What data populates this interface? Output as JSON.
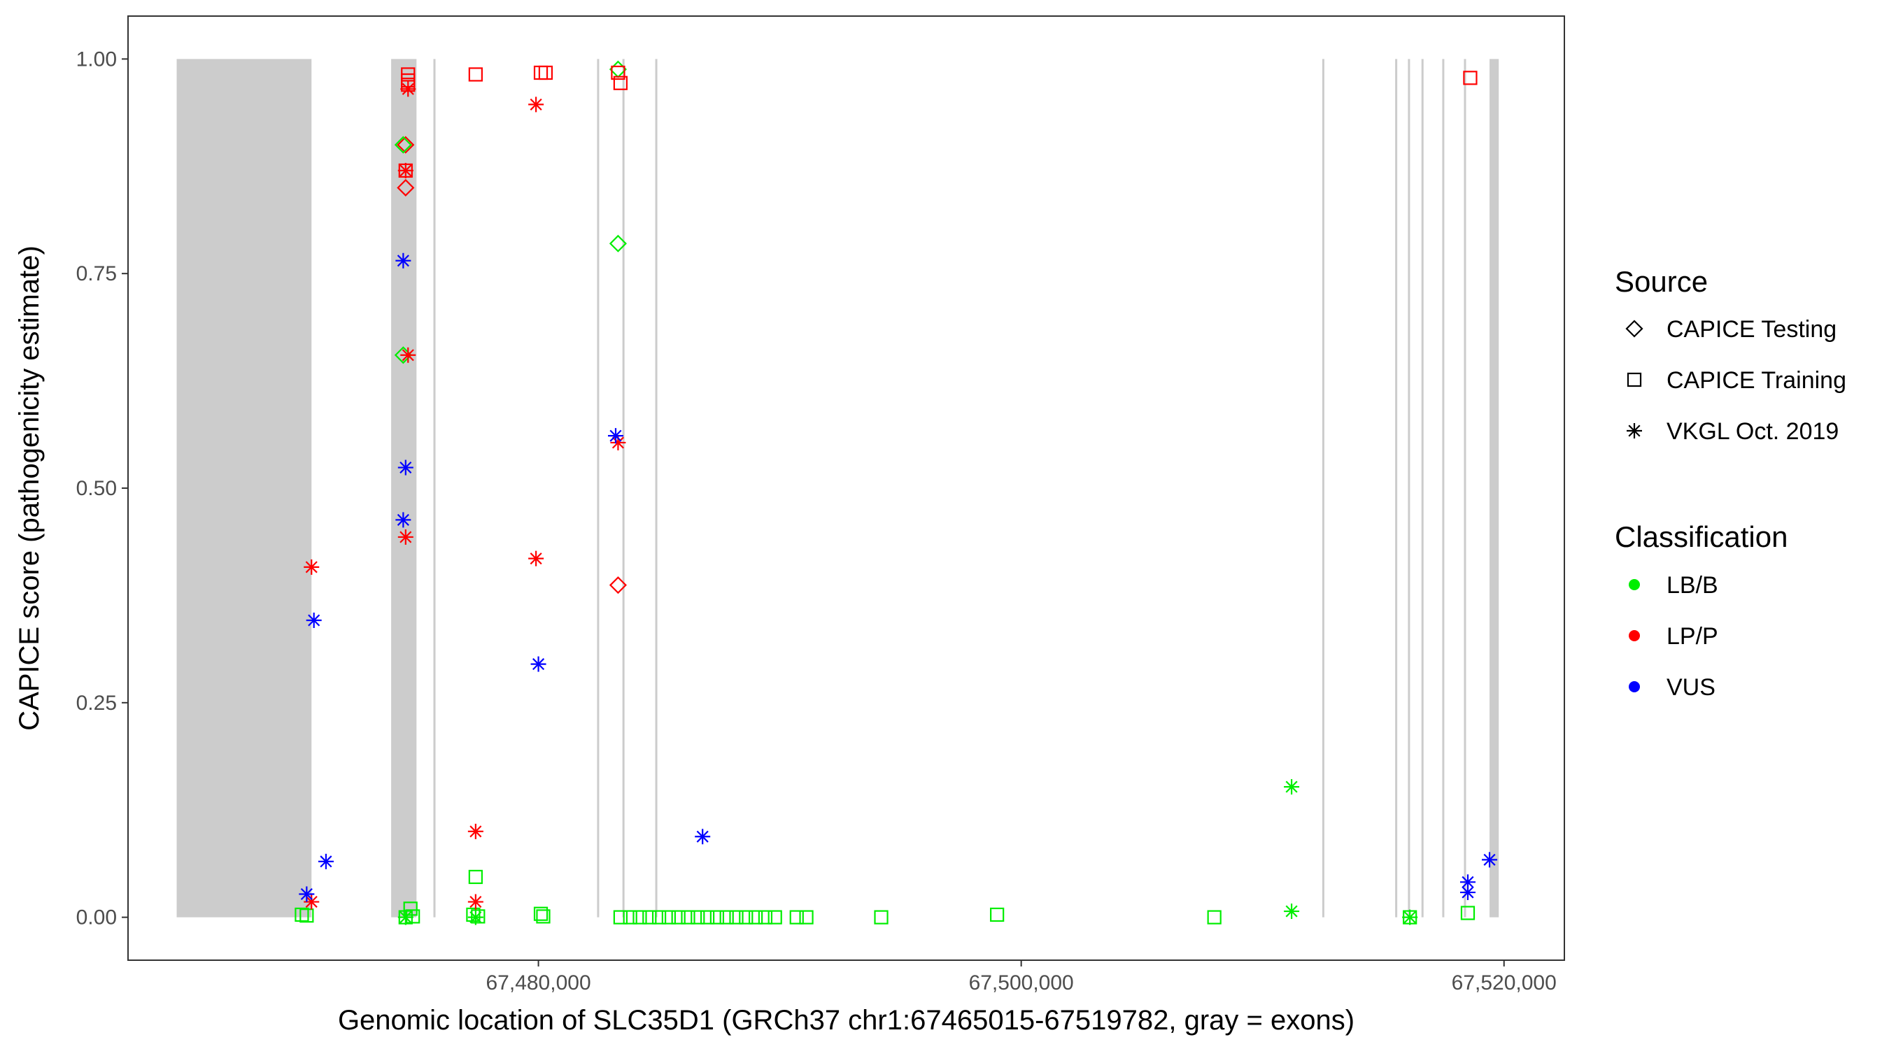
{
  "chart_data": {
    "type": "scatter",
    "title": "",
    "xlabel": "Genomic location of SLC35D1 (GRCh37 chr1:67465015-67519782, gray = exons)",
    "ylabel": "CAPICE score (pathogenicity estimate)",
    "xlim": [
      67463000,
      67522500
    ],
    "ylim": [
      -0.05,
      1.05
    ],
    "x_ticks": [
      {
        "value": 67480000,
        "label": "67,480,000"
      },
      {
        "value": 67500000,
        "label": "67,500,000"
      },
      {
        "value": 67520000,
        "label": "67,520,000"
      }
    ],
    "y_ticks": [
      {
        "value": 0.0,
        "label": "0.00"
      },
      {
        "value": 0.25,
        "label": "0.25"
      },
      {
        "value": 0.5,
        "label": "0.50"
      },
      {
        "value": 0.75,
        "label": "0.75"
      },
      {
        "value": 1.0,
        "label": "1.00"
      }
    ],
    "grid": false,
    "legend_position": "right",
    "exons": [
      [
        67465015,
        67470600
      ],
      [
        67473900,
        67474950
      ],
      [
        67475650,
        67475720
      ],
      [
        67482430,
        67482500
      ],
      [
        67483480,
        67483550
      ],
      [
        67484840,
        67484910
      ],
      [
        67512470,
        67512540
      ],
      [
        67515490,
        67515560
      ],
      [
        67516020,
        67516090
      ],
      [
        67516580,
        67516640
      ],
      [
        67517440,
        67517510
      ],
      [
        67518340,
        67518410
      ],
      [
        67519400,
        67519782
      ]
    ],
    "source_legend": {
      "title": "Source",
      "items": [
        {
          "key": "testing",
          "label": "CAPICE Testing",
          "shape": "diamond"
        },
        {
          "key": "training",
          "label": "CAPICE Training",
          "shape": "square"
        },
        {
          "key": "vkgl",
          "label": "VKGL Oct. 2019",
          "shape": "asterisk"
        }
      ]
    },
    "class_legend": {
      "title": "Classification",
      "items": [
        {
          "key": "LB/B",
          "label": "LB/B",
          "color": "#00ee00"
        },
        {
          "key": "LP/P",
          "label": "LP/P",
          "color": "#ff0000"
        },
        {
          "key": "VUS",
          "label": "VUS",
          "color": "#0000ff"
        }
      ]
    },
    "points": [
      {
        "x": 67474500,
        "y": 0.9,
        "source": "testing",
        "class": "LP/P"
      },
      {
        "x": 67474500,
        "y": 0.85,
        "source": "testing",
        "class": "LP/P"
      },
      {
        "x": 67474400,
        "y": 0.9,
        "source": "testing",
        "class": "LB/B"
      },
      {
        "x": 67474400,
        "y": 0.655,
        "source": "testing",
        "class": "LB/B"
      },
      {
        "x": 67483300,
        "y": 0.988,
        "source": "testing",
        "class": "LB/B"
      },
      {
        "x": 67483300,
        "y": 0.785,
        "source": "testing",
        "class": "LB/B"
      },
      {
        "x": 67483300,
        "y": 0.387,
        "source": "testing",
        "class": "LP/P"
      },
      {
        "x": 67474600,
        "y": 0.982,
        "source": "training",
        "class": "LP/P"
      },
      {
        "x": 67474600,
        "y": 0.975,
        "source": "training",
        "class": "LP/P"
      },
      {
        "x": 67474600,
        "y": 0.97,
        "source": "training",
        "class": "LP/P"
      },
      {
        "x": 67474500,
        "y": 0.87,
        "source": "training",
        "class": "LP/P"
      },
      {
        "x": 67477400,
        "y": 0.982,
        "source": "training",
        "class": "LP/P"
      },
      {
        "x": 67480100,
        "y": 0.984,
        "source": "training",
        "class": "LP/P"
      },
      {
        "x": 67480300,
        "y": 0.984,
        "source": "training",
        "class": "LP/P"
      },
      {
        "x": 67483300,
        "y": 0.984,
        "source": "training",
        "class": "LP/P"
      },
      {
        "x": 67483400,
        "y": 0.972,
        "source": "training",
        "class": "LP/P"
      },
      {
        "x": 67518600,
        "y": 0.978,
        "source": "training",
        "class": "LP/P"
      },
      {
        "x": 67470200,
        "y": 0.003,
        "source": "training",
        "class": "LB/B"
      },
      {
        "x": 67470400,
        "y": 0.002,
        "source": "training",
        "class": "LB/B"
      },
      {
        "x": 67474500,
        "y": 0.0,
        "source": "training",
        "class": "LB/B"
      },
      {
        "x": 67474700,
        "y": 0.01,
        "source": "training",
        "class": "LB/B"
      },
      {
        "x": 67474800,
        "y": 0.001,
        "source": "training",
        "class": "LB/B"
      },
      {
        "x": 67477400,
        "y": 0.047,
        "source": "training",
        "class": "LB/B"
      },
      {
        "x": 67477300,
        "y": 0.003,
        "source": "training",
        "class": "LB/B"
      },
      {
        "x": 67477500,
        "y": 0.001,
        "source": "training",
        "class": "LB/B"
      },
      {
        "x": 67480100,
        "y": 0.004,
        "source": "training",
        "class": "LB/B"
      },
      {
        "x": 67480200,
        "y": 0.001,
        "source": "training",
        "class": "LB/B"
      },
      {
        "x": 67483400,
        "y": 0.0,
        "source": "training",
        "class": "LB/B"
      },
      {
        "x": 67483800,
        "y": 0.0,
        "source": "training",
        "class": "LB/B"
      },
      {
        "x": 67484200,
        "y": 0.0,
        "source": "training",
        "class": "LB/B"
      },
      {
        "x": 67484600,
        "y": 0.0,
        "source": "training",
        "class": "LB/B"
      },
      {
        "x": 67485000,
        "y": 0.0,
        "source": "training",
        "class": "LB/B"
      },
      {
        "x": 67485400,
        "y": 0.0,
        "source": "training",
        "class": "LB/B"
      },
      {
        "x": 67485800,
        "y": 0.0,
        "source": "training",
        "class": "LB/B"
      },
      {
        "x": 67486200,
        "y": 0.0,
        "source": "training",
        "class": "LB/B"
      },
      {
        "x": 67486600,
        "y": 0.0,
        "source": "training",
        "class": "LB/B"
      },
      {
        "x": 67487000,
        "y": 0.0,
        "source": "training",
        "class": "LB/B"
      },
      {
        "x": 67487400,
        "y": 0.0,
        "source": "training",
        "class": "LB/B"
      },
      {
        "x": 67487800,
        "y": 0.0,
        "source": "training",
        "class": "LB/B"
      },
      {
        "x": 67488200,
        "y": 0.0,
        "source": "training",
        "class": "LB/B"
      },
      {
        "x": 67488600,
        "y": 0.0,
        "source": "training",
        "class": "LB/B"
      },
      {
        "x": 67489000,
        "y": 0.0,
        "source": "training",
        "class": "LB/B"
      },
      {
        "x": 67489400,
        "y": 0.0,
        "source": "training",
        "class": "LB/B"
      },
      {
        "x": 67489800,
        "y": 0.0,
        "source": "training",
        "class": "LB/B"
      },
      {
        "x": 67490700,
        "y": 0.0,
        "source": "training",
        "class": "LB/B"
      },
      {
        "x": 67491100,
        "y": 0.0,
        "source": "training",
        "class": "LB/B"
      },
      {
        "x": 67494200,
        "y": 0.0,
        "source": "training",
        "class": "LB/B"
      },
      {
        "x": 67499000,
        "y": 0.003,
        "source": "training",
        "class": "LB/B"
      },
      {
        "x": 67508000,
        "y": 0.0,
        "source": "training",
        "class": "LB/B"
      },
      {
        "x": 67516100,
        "y": 0.0,
        "source": "training",
        "class": "LB/B"
      },
      {
        "x": 67518500,
        "y": 0.005,
        "source": "training",
        "class": "LB/B"
      },
      {
        "x": 67470600,
        "y": 0.408,
        "source": "vkgl",
        "class": "LP/P"
      },
      {
        "x": 67470600,
        "y": 0.018,
        "source": "vkgl",
        "class": "LP/P"
      },
      {
        "x": 67474600,
        "y": 0.965,
        "source": "vkgl",
        "class": "LP/P"
      },
      {
        "x": 67474500,
        "y": 0.87,
        "source": "vkgl",
        "class": "LP/P"
      },
      {
        "x": 67474600,
        "y": 0.655,
        "source": "vkgl",
        "class": "LP/P"
      },
      {
        "x": 67474500,
        "y": 0.443,
        "source": "vkgl",
        "class": "LP/P"
      },
      {
        "x": 67477400,
        "y": 0.1,
        "source": "vkgl",
        "class": "LP/P"
      },
      {
        "x": 67477400,
        "y": 0.018,
        "source": "vkgl",
        "class": "LP/P"
      },
      {
        "x": 67479900,
        "y": 0.947,
        "source": "vkgl",
        "class": "LP/P"
      },
      {
        "x": 67479900,
        "y": 0.418,
        "source": "vkgl",
        "class": "LP/P"
      },
      {
        "x": 67483300,
        "y": 0.553,
        "source": "vkgl",
        "class": "LP/P"
      },
      {
        "x": 67470700,
        "y": 0.346,
        "source": "vkgl",
        "class": "VUS"
      },
      {
        "x": 67470400,
        "y": 0.027,
        "source": "vkgl",
        "class": "VUS"
      },
      {
        "x": 67471200,
        "y": 0.065,
        "source": "vkgl",
        "class": "VUS"
      },
      {
        "x": 67474400,
        "y": 0.765,
        "source": "vkgl",
        "class": "VUS"
      },
      {
        "x": 67474500,
        "y": 0.524,
        "source": "vkgl",
        "class": "VUS"
      },
      {
        "x": 67474400,
        "y": 0.463,
        "source": "vkgl",
        "class": "VUS"
      },
      {
        "x": 67480000,
        "y": 0.295,
        "source": "vkgl",
        "class": "VUS"
      },
      {
        "x": 67483200,
        "y": 0.561,
        "source": "vkgl",
        "class": "VUS"
      },
      {
        "x": 67486800,
        "y": 0.094,
        "source": "vkgl",
        "class": "VUS"
      },
      {
        "x": 67518500,
        "y": 0.041,
        "source": "vkgl",
        "class": "VUS"
      },
      {
        "x": 67518500,
        "y": 0.029,
        "source": "vkgl",
        "class": "VUS"
      },
      {
        "x": 67519400,
        "y": 0.067,
        "source": "vkgl",
        "class": "VUS"
      },
      {
        "x": 67474500,
        "y": 0.0,
        "source": "vkgl",
        "class": "LB/B"
      },
      {
        "x": 67477400,
        "y": 0.0,
        "source": "vkgl",
        "class": "LB/B"
      },
      {
        "x": 67511200,
        "y": 0.152,
        "source": "vkgl",
        "class": "LB/B"
      },
      {
        "x": 67511200,
        "y": 0.007,
        "source": "vkgl",
        "class": "LB/B"
      },
      {
        "x": 67516100,
        "y": 0.0,
        "source": "vkgl",
        "class": "LB/B"
      }
    ]
  }
}
